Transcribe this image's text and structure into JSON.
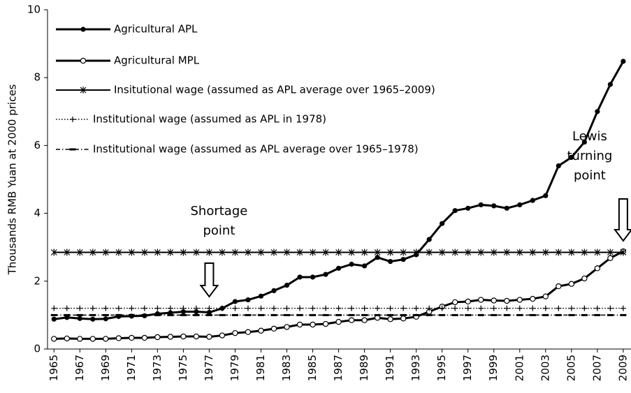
{
  "chart_data": {
    "type": "line",
    "y_label": "Thousands RMB Yuan at 2000 prices",
    "x": [
      1965,
      1966,
      1967,
      1968,
      1969,
      1970,
      1971,
      1972,
      1973,
      1974,
      1975,
      1976,
      1977,
      1978,
      1979,
      1980,
      1981,
      1982,
      1983,
      1984,
      1985,
      1986,
      1987,
      1988,
      1989,
      1990,
      1991,
      1992,
      1993,
      1994,
      1995,
      1996,
      1997,
      1998,
      1999,
      2000,
      2001,
      2002,
      2003,
      2004,
      2005,
      2006,
      2007,
      2008,
      2009
    ],
    "xlim": [
      1964.5,
      2009.6
    ],
    "xticks": [
      1965,
      1967,
      1969,
      1971,
      1973,
      1975,
      1977,
      1979,
      1981,
      1983,
      1985,
      1987,
      1989,
      1991,
      1993,
      1995,
      1997,
      1999,
      2001,
      2003,
      2005,
      2007,
      2009
    ],
    "ylim": [
      0,
      10
    ],
    "yticks": [
      0,
      2,
      4,
      6,
      8,
      10
    ],
    "grid": false,
    "legend": "upper-left",
    "series": [
      {
        "name": "Agricultural APL",
        "color": "#000000",
        "marker": "filled-circle",
        "dash": "solid",
        "values": [
          0.88,
          0.93,
          0.9,
          0.88,
          0.89,
          0.96,
          0.97,
          0.98,
          1.04,
          1.07,
          1.1,
          1.1,
          1.08,
          1.2,
          1.4,
          1.45,
          1.56,
          1.72,
          1.88,
          2.12,
          2.12,
          2.2,
          2.38,
          2.5,
          2.45,
          2.7,
          2.58,
          2.64,
          2.78,
          3.23,
          3.7,
          4.08,
          4.15,
          4.25,
          4.22,
          4.15,
          4.25,
          4.38,
          4.52,
          5.4,
          5.65,
          6.1,
          7.0,
          7.8,
          8.48
        ]
      },
      {
        "name": "Agricultural MPL",
        "color": "#000000",
        "marker": "open-circle",
        "dash": "solid",
        "values": [
          0.3,
          0.31,
          0.3,
          0.3,
          0.3,
          0.32,
          0.33,
          0.33,
          0.35,
          0.36,
          0.37,
          0.37,
          0.36,
          0.4,
          0.47,
          0.5,
          0.54,
          0.6,
          0.65,
          0.72,
          0.72,
          0.74,
          0.8,
          0.85,
          0.85,
          0.92,
          0.88,
          0.9,
          0.95,
          1.1,
          1.25,
          1.38,
          1.4,
          1.45,
          1.43,
          1.42,
          1.45,
          1.48,
          1.55,
          1.85,
          1.92,
          2.08,
          2.38,
          2.68,
          2.88
        ]
      },
      {
        "name": "Insitutional wage (assumed as APL average over 1965–2009)",
        "color": "#000000",
        "marker": "asterisk",
        "dash": "solid",
        "values": [
          2.85,
          2.85,
          2.85,
          2.85,
          2.85,
          2.85,
          2.85,
          2.85,
          2.85,
          2.85,
          2.85,
          2.85,
          2.85,
          2.85,
          2.85,
          2.85,
          2.85,
          2.85,
          2.85,
          2.85,
          2.85,
          2.85,
          2.85,
          2.85,
          2.85,
          2.85,
          2.85,
          2.85,
          2.85,
          2.85,
          2.85,
          2.85,
          2.85,
          2.85,
          2.85,
          2.85,
          2.85,
          2.85,
          2.85,
          2.85,
          2.85,
          2.85,
          2.85,
          2.85,
          2.85
        ]
      },
      {
        "name": "Institutional wage (assumed as APL in 1978)",
        "color": "#000000",
        "marker": "plus",
        "dash": "dotted",
        "values": [
          1.2,
          1.2,
          1.2,
          1.2,
          1.2,
          1.2,
          1.2,
          1.2,
          1.2,
          1.2,
          1.2,
          1.2,
          1.2,
          1.2,
          1.2,
          1.2,
          1.2,
          1.2,
          1.2,
          1.2,
          1.2,
          1.2,
          1.2,
          1.2,
          1.2,
          1.2,
          1.2,
          1.2,
          1.2,
          1.2,
          1.2,
          1.2,
          1.2,
          1.2,
          1.2,
          1.2,
          1.2,
          1.2,
          1.2,
          1.2,
          1.2,
          1.2,
          1.2,
          1.2,
          1.2
        ]
      },
      {
        "name": "Institutional wage (assumed as APL average over 1965–1978)",
        "color": "#000000",
        "marker": "dash",
        "dash": "dash-dot",
        "values": [
          1.0,
          1.0,
          1.0,
          1.0,
          1.0,
          1.0,
          1.0,
          1.0,
          1.0,
          1.0,
          1.0,
          1.0,
          1.0,
          1.0,
          1.0,
          1.0,
          1.0,
          1.0,
          1.0,
          1.0,
          1.0,
          1.0,
          1.0,
          1.0,
          1.0,
          1.0,
          1.0,
          1.0,
          1.0,
          1.0,
          1.0,
          1.0,
          1.0,
          1.0,
          1.0,
          1.0,
          1.0,
          1.0,
          1.0,
          1.0,
          1.0,
          1.0,
          1.0,
          1.0,
          1.0
        ]
      }
    ],
    "annotations": [
      {
        "lines": [
          "Shortage",
          "point"
        ],
        "x": 1977
      },
      {
        "lines": [
          "Lewis",
          "turning",
          "point"
        ],
        "x": 2009
      }
    ]
  }
}
